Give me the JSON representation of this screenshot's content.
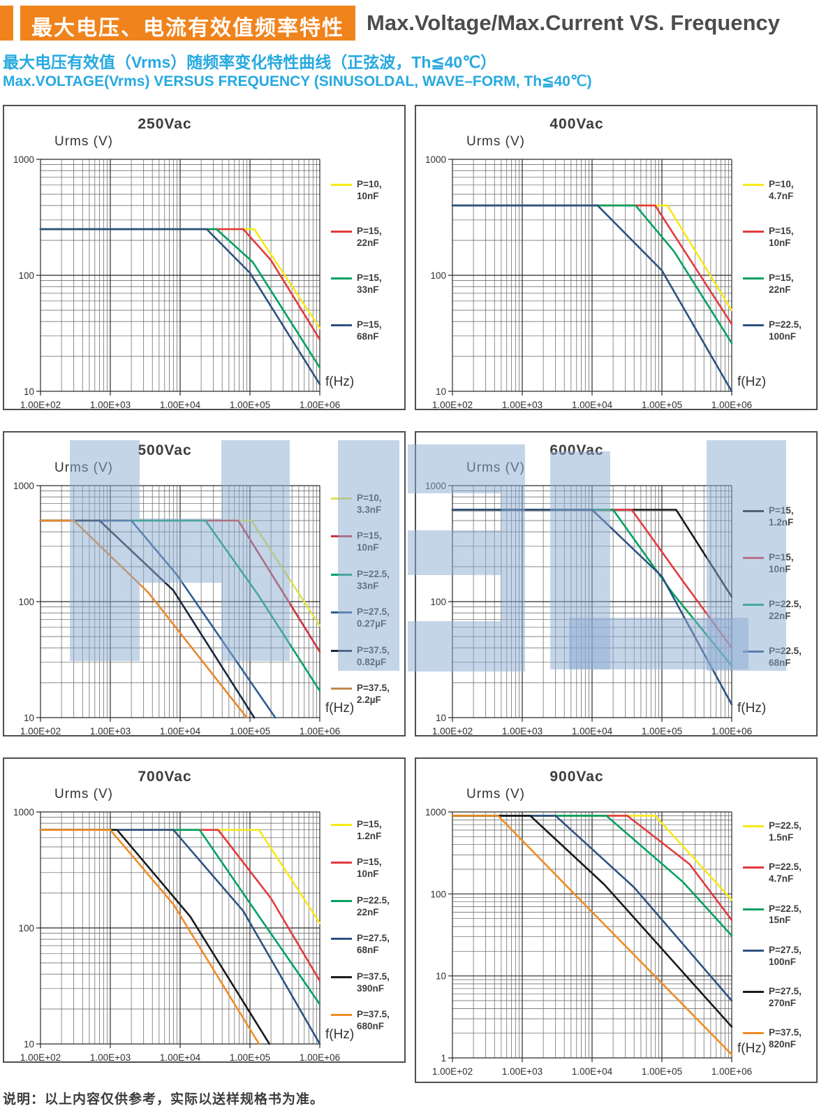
{
  "header": {
    "zh": "最大电压、电流有效值频率特性",
    "en": "Max.Voltage/Max.Current VS. Frequency",
    "accent_color": "#f0831c",
    "en_color": "#4c4c4e"
  },
  "subtitle": {
    "zh": "最大电压有效值（Vrms）随频率变化特性曲线（正弦波，Th≦40℃）",
    "en": "Max.VOLTAGE(Vrms) VERSUS FREQUENCY (SINUSOLDAL, WAVE–FORM, Th≦40℃)",
    "color": "#27a9e0"
  },
  "footer": {
    "text": "说明：以上内容仅供参考，实际以送样规格书为准。"
  },
  "watermark": {
    "color": "rgba(139,172,209,0.5)",
    "rects": [
      [
        100,
        630,
        100,
        316
      ],
      [
        200,
        742,
        117,
        92
      ],
      [
        317,
        630,
        98,
        316
      ],
      [
        484,
        630,
        88,
        330
      ],
      [
        584,
        636,
        134,
        70
      ],
      [
        584,
        759,
        134,
        64
      ],
      [
        584,
        889,
        134,
        72
      ],
      [
        718,
        636,
        34,
        325
      ],
      [
        788,
        646,
        86,
        312
      ],
      [
        815,
        884,
        257,
        74
      ],
      [
        1012,
        630,
        114,
        330
      ]
    ]
  },
  "chart_data": [
    {
      "type": "line",
      "title": "250Vac",
      "xlabel": "f(Hz)",
      "ylabel": "Urms  (V)",
      "x_scale": "log",
      "y_scale": "log",
      "grid": true,
      "legend_position": "right",
      "xlim": [
        100,
        1000000
      ],
      "ylim": [
        10,
        1000
      ],
      "x_tick_labels": [
        "1.00E+02",
        "1.00E+03",
        "1.00E+04",
        "1.00E+05",
        "1.00E+06"
      ],
      "y_tick_labels": [
        "1000",
        "100",
        "10"
      ],
      "series": [
        {
          "name": "P=10, 10nF",
          "color": "#f7e818",
          "points": [
            [
              100,
              250
            ],
            [
              115000,
              250
            ],
            [
              1000000,
              35
            ]
          ]
        },
        {
          "name": "P=15, 22nF",
          "color": "#e23a3e",
          "points": [
            [
              100,
              250
            ],
            [
              80000,
              250
            ],
            [
              200000,
              135
            ],
            [
              1000000,
              28
            ]
          ]
        },
        {
          "name": "P=15, 33nF",
          "color": "#00a160",
          "points": [
            [
              100,
              250
            ],
            [
              33000,
              250
            ],
            [
              110000,
              130
            ],
            [
              1000000,
              16
            ]
          ]
        },
        {
          "name": "P=15, 68nF",
          "color": "#2e5180",
          "points": [
            [
              100,
              250
            ],
            [
              24000,
              250
            ],
            [
              100000,
              105
            ],
            [
              1000000,
              11.5
            ]
          ]
        }
      ]
    },
    {
      "type": "line",
      "title": "400Vac",
      "xlabel": "f(Hz)",
      "ylabel": "Urms  (V)",
      "x_scale": "log",
      "y_scale": "log",
      "grid": true,
      "legend_position": "right",
      "xlim": [
        100,
        1000000
      ],
      "ylim": [
        10,
        1000
      ],
      "x_tick_labels": [
        "1.00E+02",
        "1.00E+03",
        "1.00E+04",
        "1.00E+05",
        "1.00E+06"
      ],
      "y_tick_labels": [
        "1000",
        "100",
        "10"
      ],
      "series": [
        {
          "name": "P=10, 4.7nF",
          "color": "#f7e818",
          "points": [
            [
              100,
              400
            ],
            [
              120000,
              400
            ],
            [
              1000000,
              50
            ]
          ]
        },
        {
          "name": "P=15, 10nF",
          "color": "#e23a3e",
          "points": [
            [
              100,
              400
            ],
            [
              80000,
              400
            ],
            [
              1000000,
              38
            ]
          ]
        },
        {
          "name": "P=15, 22nF",
          "color": "#00a160",
          "points": [
            [
              100,
              400
            ],
            [
              42000,
              400
            ],
            [
              150000,
              160
            ],
            [
              1000000,
              26
            ]
          ]
        },
        {
          "name": "P=22.5, 100nF",
          "color": "#2e5180",
          "points": [
            [
              100,
              400
            ],
            [
              12000,
              400
            ],
            [
              100000,
              110
            ],
            [
              1000000,
              10
            ]
          ]
        }
      ]
    },
    {
      "type": "line",
      "title": "500Vac",
      "xlabel": "f(Hz)",
      "ylabel": "Urms  (V)",
      "x_scale": "log",
      "y_scale": "log",
      "grid": true,
      "legend_position": "right",
      "xlim": [
        100,
        1000000
      ],
      "ylim": [
        10,
        1000
      ],
      "x_tick_labels": [
        "1.00E+02",
        "1.00E+03",
        "1.00E+04",
        "1.00E+05",
        "1.00E+06"
      ],
      "y_tick_labels": [
        "1000",
        "100",
        "10"
      ],
      "series": [
        {
          "name": "P=10, 3.3nF",
          "color": "#dce24a",
          "points": [
            [
              100,
              500
            ],
            [
              105000,
              500
            ],
            [
              1000000,
              62
            ]
          ]
        },
        {
          "name": "P=15, 10nF",
          "color": "#c8323f",
          "points": [
            [
              100,
              500
            ],
            [
              68000,
              500
            ],
            [
              1000000,
              37
            ]
          ]
        },
        {
          "name": "P=22.5, 33nF",
          "color": "#00a06b",
          "points": [
            [
              100,
              500
            ],
            [
              23000,
              500
            ],
            [
              130000,
              115
            ],
            [
              1000000,
              17
            ]
          ]
        },
        {
          "name": "P=27.5, 0.27µF",
          "color": "#2d5e93",
          "points": [
            [
              100,
              500
            ],
            [
              2000,
              500
            ],
            [
              9000,
              170
            ],
            [
              230000,
              10
            ]
          ]
        },
        {
          "name": "P=37.5, 0.82µF",
          "color": "#16273f",
          "points": [
            [
              100,
              500
            ],
            [
              700,
              500
            ],
            [
              8000,
              125
            ],
            [
              115000,
              10
            ]
          ]
        },
        {
          "name": "P=37.5, 2.2µF",
          "color": "#e8882a",
          "swatch": "#c08a50",
          "points": [
            [
              100,
              500
            ],
            [
              300,
              500
            ],
            [
              3500,
              120
            ],
            [
              90000,
              10
            ]
          ]
        }
      ]
    },
    {
      "type": "line",
      "title": "600Vac",
      "xlabel": "f(Hz)",
      "ylabel": "Urms  (V)",
      "x_scale": "log",
      "y_scale": "log",
      "grid": true,
      "legend_position": "right",
      "xlim": [
        100,
        1000000
      ],
      "ylim": [
        10,
        1000
      ],
      "x_tick_labels": [
        "1.00E+02",
        "1.00E+03",
        "1.00E+04",
        "1.00E+05",
        "1.00E+06"
      ],
      "y_tick_labels": [
        "1000",
        "100",
        "10"
      ],
      "series": [
        {
          "name": "P=15, 1.2nF",
          "color": "#1a1a1a",
          "points": [
            [
              100,
              620
            ],
            [
              160000,
              620
            ],
            [
              1000000,
              110
            ]
          ]
        },
        {
          "name": "P=15, 10nF",
          "color": "#e23a3e",
          "points": [
            [
              100,
              620
            ],
            [
              37000,
              620
            ],
            [
              200000,
              150
            ],
            [
              1000000,
              40
            ]
          ]
        },
        {
          "name": "P=22.5, 22nF",
          "color": "#00a160",
          "points": [
            [
              100,
              620
            ],
            [
              20000,
              620
            ],
            [
              140000,
              120
            ],
            [
              1000000,
              28
            ]
          ]
        },
        {
          "name": "P=22.5, 68nF",
          "color": "#2e5180",
          "points": [
            [
              100,
              620
            ],
            [
              10000,
              620
            ],
            [
              100000,
              165
            ],
            [
              1000000,
              13
            ]
          ]
        }
      ]
    },
    {
      "type": "line",
      "title": "700Vac",
      "xlabel": "f(Hz)",
      "ylabel": "Urms  (V)",
      "x_scale": "log",
      "y_scale": "log",
      "grid": true,
      "legend_position": "right",
      "xlim": [
        100,
        1000000
      ],
      "ylim": [
        10,
        1000
      ],
      "x_tick_labels": [
        "1.00E+02",
        "1.00E+03",
        "1.00E+04",
        "1.00E+05",
        "1.00E+06"
      ],
      "y_tick_labels": [
        "1000",
        "100",
        "10"
      ],
      "series": [
        {
          "name": "P=15, 1.2nF",
          "color": "#f7e818",
          "points": [
            [
              100,
              700
            ],
            [
              135000,
              700
            ],
            [
              1000000,
              110
            ]
          ]
        },
        {
          "name": "P=15, 10nF",
          "color": "#e23a3e",
          "points": [
            [
              100,
              700
            ],
            [
              35000,
              700
            ],
            [
              200000,
              180
            ],
            [
              1000000,
              35
            ]
          ]
        },
        {
          "name": "P=22.5, 22nF",
          "color": "#00a160",
          "points": [
            [
              100,
              700
            ],
            [
              19000,
              700
            ],
            [
              130000,
              130
            ],
            [
              1000000,
              22
            ]
          ]
        },
        {
          "name": "P=27.5, 68nF",
          "color": "#2e5180",
          "points": [
            [
              100,
              700
            ],
            [
              8000,
              700
            ],
            [
              80000,
              140
            ],
            [
              1000000,
              10
            ]
          ]
        },
        {
          "name": "P=37.5, 390nF",
          "color": "#1a1a1a",
          "points": [
            [
              100,
              700
            ],
            [
              1250,
              700
            ],
            [
              14000,
              125
            ],
            [
              190000,
              10
            ]
          ]
        },
        {
          "name": "P=37.5, 680nF",
          "color": "#ef8c23",
          "points": [
            [
              100,
              700
            ],
            [
              1000,
              700
            ],
            [
              8000,
              160
            ],
            [
              135000,
              10
            ]
          ]
        }
      ]
    },
    {
      "type": "line",
      "title": "900Vac",
      "xlabel": "f(Hz)",
      "ylabel": "Urms  (V)",
      "x_scale": "log",
      "y_scale": "log",
      "grid": true,
      "legend_position": "right",
      "xlim": [
        100,
        1000000
      ],
      "ylim": [
        1,
        1000
      ],
      "x_tick_labels": [
        "1.00E+02",
        "1.00E+03",
        "1.00E+04",
        "1.00E+05",
        "1.00E+06"
      ],
      "y_tick_labels": [
        "1000",
        "100",
        "10",
        "1"
      ],
      "series": [
        {
          "name": "P=22.5, 1.5nF",
          "color": "#f7e818",
          "points": [
            [
              100,
              900
            ],
            [
              80000,
              900
            ],
            [
              1000000,
              85
            ]
          ]
        },
        {
          "name": "P=22.5, 4.7nF",
          "color": "#e23a3e",
          "points": [
            [
              100,
              900
            ],
            [
              32000,
              900
            ],
            [
              250000,
              230
            ],
            [
              1000000,
              48
            ]
          ]
        },
        {
          "name": "P=22.5, 15nF",
          "color": "#00a160",
          "points": [
            [
              100,
              900
            ],
            [
              16000,
              900
            ],
            [
              200000,
              140
            ],
            [
              1000000,
              31
            ]
          ]
        },
        {
          "name": "P=27.5, 100nF",
          "color": "#2e5180",
          "points": [
            [
              100,
              900
            ],
            [
              3000,
              900
            ],
            [
              40000,
              120
            ],
            [
              1000000,
              5
            ]
          ]
        },
        {
          "name": "P=27.5, 270nF",
          "color": "#1a1a1a",
          "points": [
            [
              100,
              900
            ],
            [
              1300,
              900
            ],
            [
              15000,
              130
            ],
            [
              1000000,
              2.4
            ]
          ]
        },
        {
          "name": "P=37.5, 820nF",
          "color": "#ef8c23",
          "points": [
            [
              100,
              900
            ],
            [
              450,
              900
            ],
            [
              5000,
              110
            ],
            [
              1000000,
              1.1
            ]
          ]
        }
      ]
    }
  ]
}
